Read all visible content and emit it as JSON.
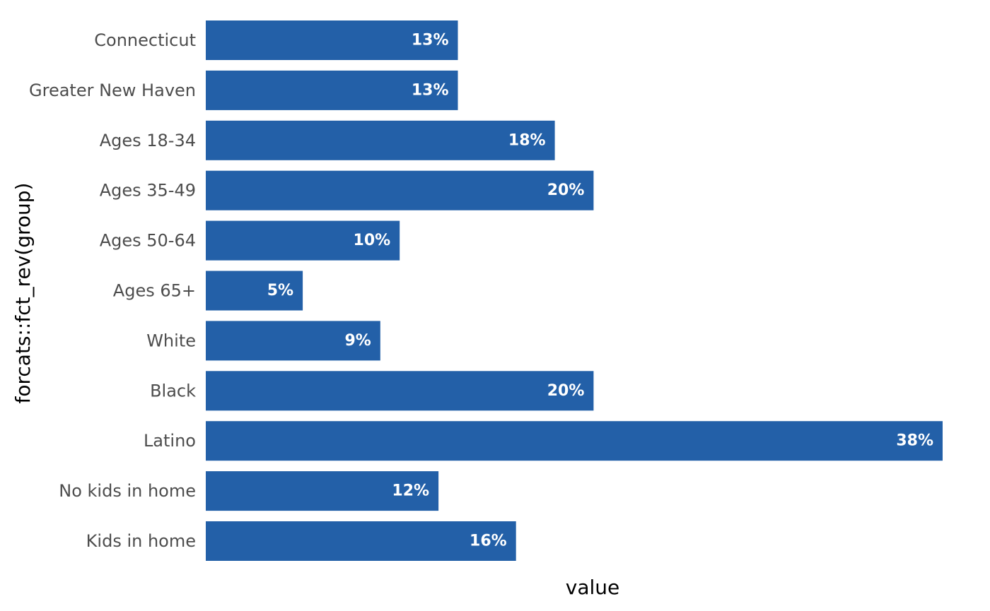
{
  "chart_data": {
    "type": "bar",
    "orientation": "horizontal",
    "categories": [
      "Connecticut",
      "Greater New Haven",
      "Ages 18-34",
      "Ages 35-49",
      "Ages 50-64",
      "Ages 65+",
      "White",
      "Black",
      "Latino",
      "No kids in home",
      "Kids in home"
    ],
    "values": [
      0.13,
      0.13,
      0.18,
      0.2,
      0.1,
      0.05,
      0.09,
      0.2,
      0.38,
      0.12,
      0.16
    ],
    "data_labels": [
      "13%",
      "13%",
      "18%",
      "20%",
      "10%",
      "5%",
      "9%",
      "20%",
      "38%",
      "12%",
      "16%"
    ],
    "xlabel": "value",
    "ylabel": "forcats::fct_rev(group)",
    "xlim": [
      0,
      0.38
    ],
    "grid": false,
    "legend": "none",
    "bar_color": "#2360a8",
    "label_color": "#ffffff",
    "x_ticks_shown": false
  }
}
